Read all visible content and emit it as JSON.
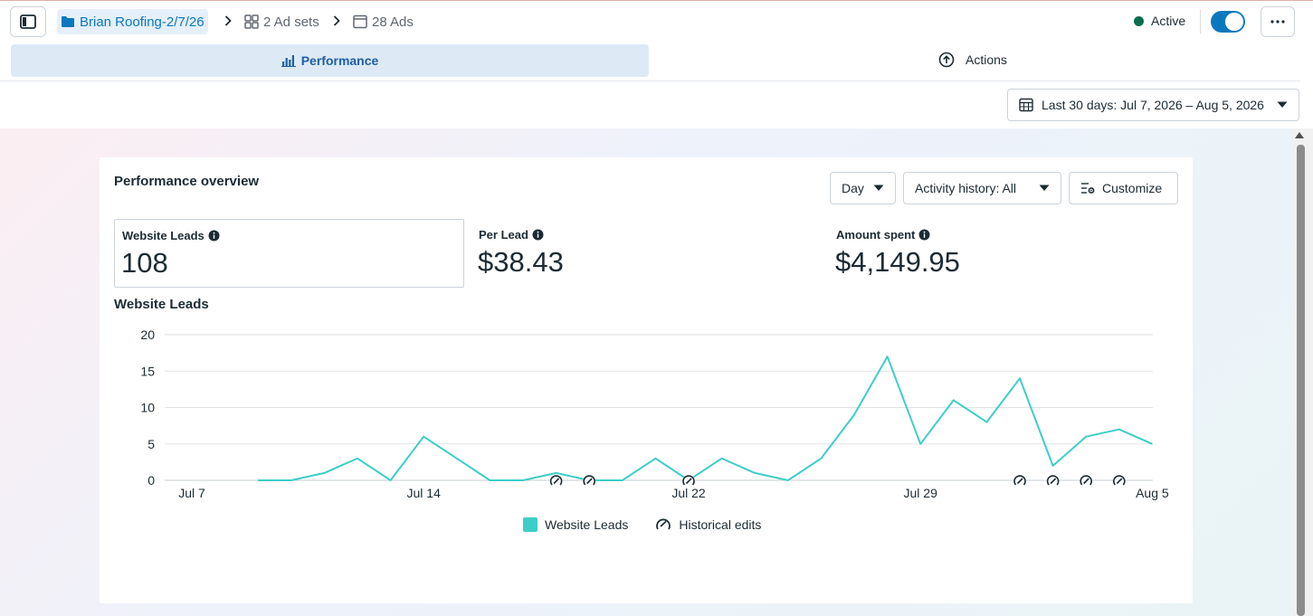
{
  "breadcrumb": {
    "campaign": "Brian Roofing-2/7/26",
    "adsets": "2 Ad sets",
    "ads": "28 Ads"
  },
  "status": {
    "label": "Active",
    "color": "#0a6e4f",
    "toggle_on": true
  },
  "tabs": [
    {
      "label": "Performance",
      "active": true,
      "icon": "bar-chart-icon"
    },
    {
      "label": "Actions",
      "active": false,
      "icon": "arrow-up-circle-icon"
    }
  ],
  "date_range": {
    "label": "Last 30 days: Jul 7, 2026 – Aug 5, 2026"
  },
  "overview": {
    "title": "Performance overview",
    "granularity": "Day",
    "activity": "Activity history: All",
    "customize": "Customize",
    "metrics": [
      {
        "label": "Website Leads",
        "value": "108",
        "selected": true
      },
      {
        "label": "Per Lead",
        "value": "$38.43",
        "selected": false
      },
      {
        "label": "Amount spent",
        "value": "$4,149.95",
        "selected": false
      }
    ]
  },
  "chart_data": {
    "type": "line",
    "title": "Website Leads",
    "x": [
      "Jul 7",
      "Jul 8",
      "Jul 9",
      "Jul 10",
      "Jul 11",
      "Jul 12",
      "Jul 13",
      "Jul 14",
      "Jul 15",
      "Jul 16",
      "Jul 17",
      "Jul 18",
      "Jul 19",
      "Jul 20",
      "Jul 21",
      "Jul 22",
      "Jul 23",
      "Jul 24",
      "Jul 25",
      "Jul 26",
      "Jul 27",
      "Jul 28",
      "Jul 29",
      "Jul 30",
      "Jul 31",
      "Aug 1",
      "Aug 2",
      "Aug 3",
      "Aug 4",
      "Aug 5"
    ],
    "x_ticks": [
      "Jul 7",
      "Jul 14",
      "Jul 22",
      "Jul 29",
      "Aug 5"
    ],
    "y_ticks": [
      0,
      5,
      10,
      15,
      20
    ],
    "ylim": [
      0,
      20
    ],
    "series": [
      {
        "name": "Website Leads",
        "color": "#3ccec8",
        "values": [
          null,
          null,
          0,
          0,
          1,
          3,
          0,
          6,
          3,
          0,
          0,
          1,
          0,
          0,
          3,
          0,
          3,
          1,
          0,
          3,
          9,
          17,
          5,
          11,
          8,
          14,
          2,
          6,
          7,
          5
        ]
      }
    ],
    "historical_edit_dates": [
      "Jul 18",
      "Jul 19",
      "Jul 22",
      "Aug 1",
      "Aug 2",
      "Aug 3",
      "Aug 4"
    ],
    "legend": [
      "Website Leads",
      "Historical edits"
    ],
    "grid": true
  }
}
